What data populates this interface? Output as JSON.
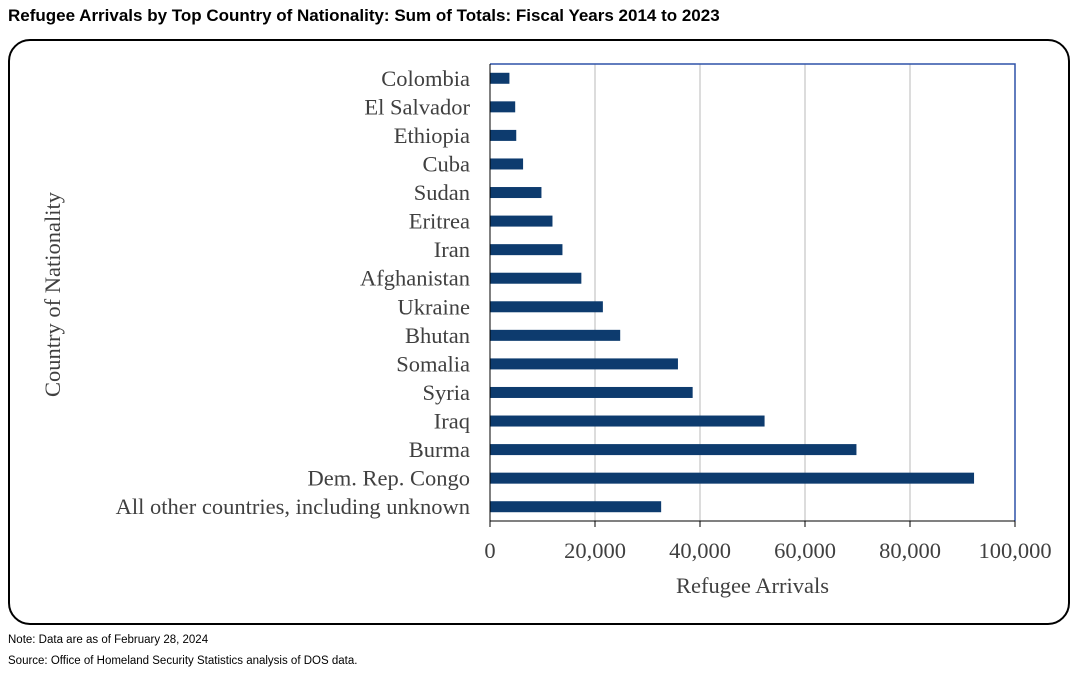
{
  "title": "Refugee Arrivals by Top Country of Nationality: Sum of Totals: Fiscal Years 2014 to 2023",
  "note": "Note: Data are as of February 28, 2024",
  "source": "Source: Office of Homeland Security Statistics analysis of DOS data.",
  "colors": {
    "bar": "#0d3b6e",
    "plot_border": "#2f52a8",
    "grid": "#d0d0d0",
    "axis_text": "#404040"
  },
  "chart_data": {
    "type": "bar",
    "orientation": "horizontal",
    "title": "",
    "xlabel": "Refugee Arrivals",
    "ylabel": "Country of Nationality",
    "xlim": [
      0,
      100000
    ],
    "xticks": [
      0,
      20000,
      40000,
      60000,
      80000,
      100000
    ],
    "xtick_labels": [
      "0",
      "20,000",
      "40,000",
      "60,000",
      "80,000",
      "100,000"
    ],
    "grid": "vertical",
    "legend": "none",
    "categories": [
      "Colombia",
      "El Salvador",
      "Ethiopia",
      "Cuba",
      "Sudan",
      "Eritrea",
      "Iran",
      "Afghanistan",
      "Ukraine",
      "Bhutan",
      "Somalia",
      "Syria",
      "Iraq",
      "Burma",
      "Dem. Rep. Congo",
      "All other countries, including unknown"
    ],
    "values": [
      3700,
      4800,
      5000,
      6300,
      9800,
      11900,
      13800,
      17400,
      21500,
      24800,
      35800,
      38600,
      52300,
      69800,
      92200,
      32600
    ]
  }
}
